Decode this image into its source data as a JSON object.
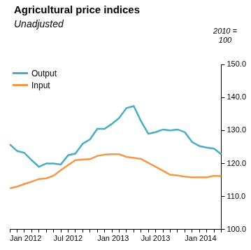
{
  "chart_data": {
    "type": "line",
    "title": "Agricultural price indices",
    "subtitle": "Unadjusted",
    "y_label": "2010 = 100",
    "categories": [
      "Jan 2012",
      null,
      null,
      null,
      null,
      null,
      "Jul 2012",
      null,
      null,
      null,
      null,
      null,
      "Jan 2013",
      null,
      null,
      null,
      null,
      null,
      "Jul 2013",
      null,
      null,
      null,
      null,
      null,
      "Jan 2014",
      null,
      null,
      null,
      null,
      null
    ],
    "series": [
      {
        "name": "Output",
        "color": "#4bacc6",
        "values": [
          125.8,
          123.8,
          123.2,
          121.0,
          119.0,
          120.0,
          120.0,
          119.7,
          122.5,
          123.0,
          126.0,
          127.3,
          130.5,
          130.5,
          132.0,
          133.8,
          136.8,
          137.4,
          132.8,
          129.0,
          129.5,
          130.3,
          130.0,
          130.3,
          129.5,
          126.5,
          125.3,
          124.8,
          124.5,
          122.8
        ]
      },
      {
        "name": "Input",
        "color": "#f79646",
        "values": [
          112.5,
          113.0,
          113.8,
          114.5,
          115.3,
          115.5,
          116.3,
          118.0,
          119.5,
          121.0,
          121.2,
          121.3,
          122.3,
          122.7,
          122.8,
          122.8,
          122.0,
          121.7,
          121.4,
          120.2,
          119.0,
          117.8,
          116.6,
          116.4,
          116.0,
          115.8,
          115.8,
          115.8,
          116.3,
          116.2
        ]
      }
    ],
    "ylim": [
      100,
      150
    ],
    "yticks": [
      {
        "value": 100,
        "label": "100.0"
      },
      {
        "value": 110,
        "label": "110.0"
      },
      {
        "value": 120,
        "label": "120.0"
      },
      {
        "value": 130,
        "label": "130.0"
      },
      {
        "value": 140,
        "label": "140.0"
      },
      {
        "value": 150,
        "label": "150.0"
      }
    ],
    "grid": false,
    "legend": "upper left"
  }
}
